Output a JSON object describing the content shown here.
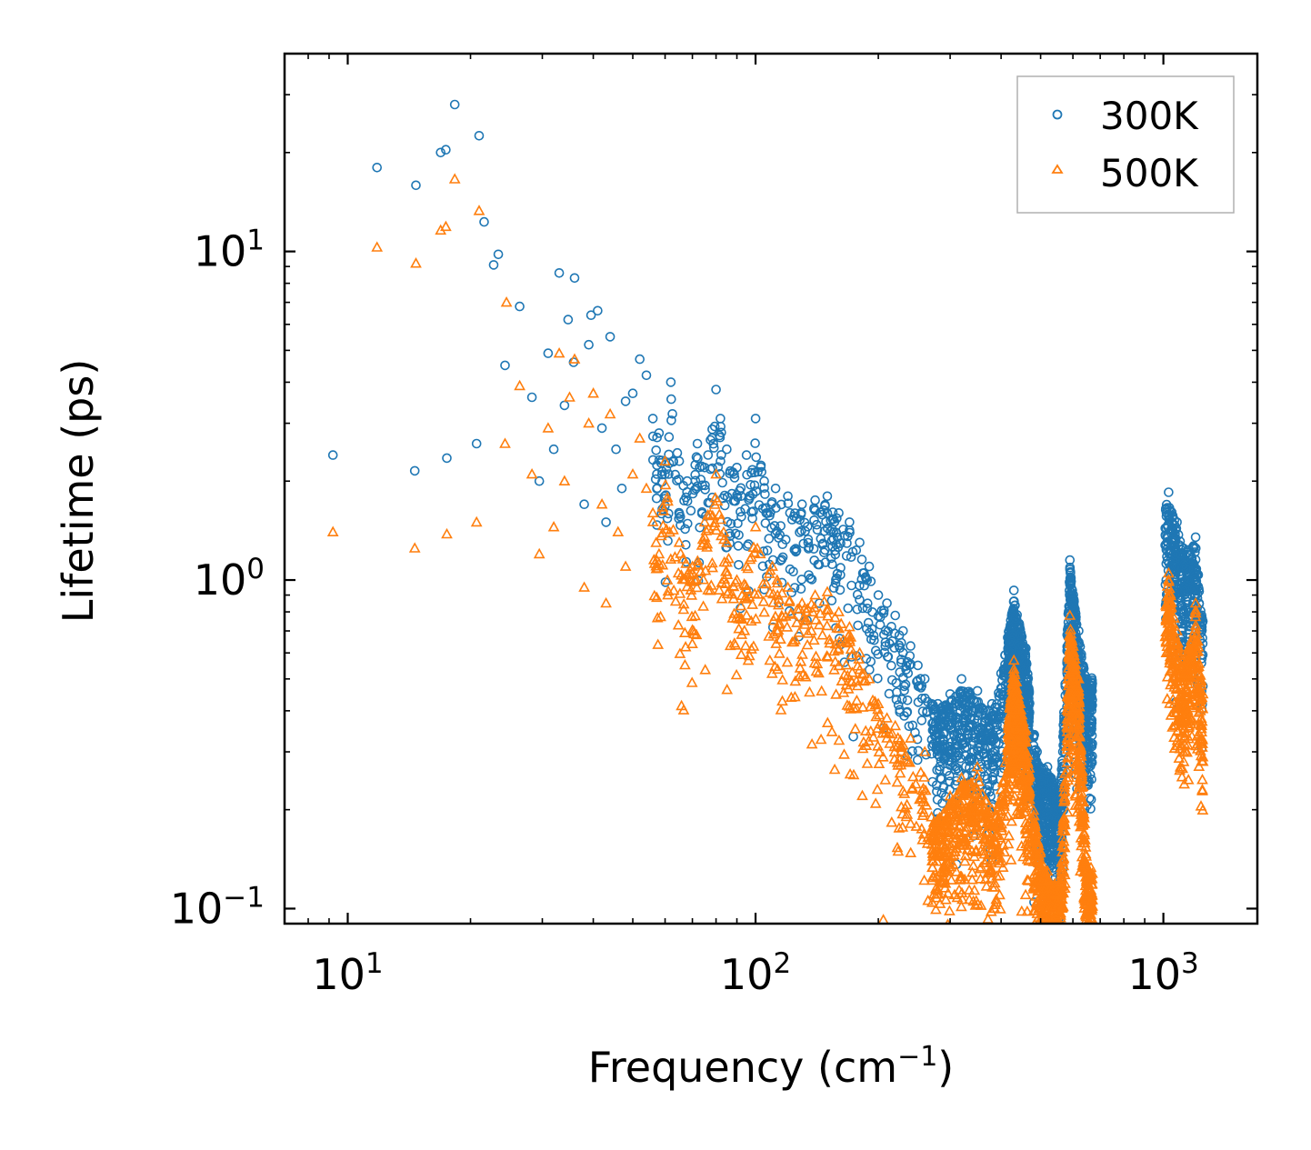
{
  "chart_data": {
    "type": "scatter",
    "xscale": "log",
    "yscale": "log",
    "title": "",
    "xlabel": "Frequency (cm",
    "xlabel_sup": "−1",
    "xlabel_end": ")",
    "ylabel": "Lifetime (ps)",
    "xlim": [
      7,
      1700
    ],
    "ylim": [
      0.09,
      40
    ],
    "grid": false,
    "legend_position": "top-right",
    "x_ticks": [
      {
        "value": 10,
        "base": "10",
        "exp": "1"
      },
      {
        "value": 100,
        "base": "10",
        "exp": "2"
      },
      {
        "value": 1000,
        "base": "10",
        "exp": "3"
      }
    ],
    "y_ticks": [
      {
        "value": 0.1,
        "base": "10",
        "exp": "−1"
      },
      {
        "value": 1,
        "base": "10",
        "exp": "0"
      },
      {
        "value": 10,
        "base": "10",
        "exp": "1"
      }
    ],
    "series": [
      {
        "name": "300K",
        "color": "#1f77b4",
        "marker": "circle",
        "points": [
          [
            9.2,
            2.4
          ],
          [
            11.8,
            18.0
          ],
          [
            14.6,
            2.15
          ],
          [
            14.7,
            15.9
          ],
          [
            16.9,
            20.0
          ],
          [
            17.4,
            20.4
          ],
          [
            17.5,
            2.35
          ],
          [
            18.3,
            28.0
          ],
          [
            20.7,
            2.6
          ],
          [
            21.0,
            22.5
          ],
          [
            21.6,
            12.3
          ],
          [
            22.8,
            9.1
          ],
          [
            23.4,
            9.8
          ],
          [
            24.3,
            4.5
          ],
          [
            26.4,
            6.8
          ],
          [
            28.3,
            3.6
          ],
          [
            29.5,
            2.0
          ],
          [
            31.0,
            4.9
          ],
          [
            32.0,
            2.5
          ],
          [
            33.0,
            8.6
          ],
          [
            34.0,
            3.4
          ],
          [
            34.7,
            6.2
          ],
          [
            35.8,
            4.6
          ],
          [
            36.0,
            8.3
          ],
          [
            38.0,
            1.7
          ],
          [
            39.0,
            5.2
          ],
          [
            39.5,
            6.4
          ],
          [
            41.0,
            6.6
          ],
          [
            42.0,
            2.9
          ],
          [
            43.0,
            1.5
          ],
          [
            44.0,
            5.5
          ],
          [
            45.5,
            2.5
          ],
          [
            47.0,
            1.9
          ],
          [
            48.0,
            3.5
          ],
          [
            50.0,
            3.7
          ],
          [
            52.0,
            4.7
          ],
          [
            54.0,
            4.2
          ],
          [
            56.0,
            3.1
          ],
          [
            58.0,
            2.8
          ],
          [
            60.0,
            2.1
          ],
          [
            62.0,
            4.0
          ],
          [
            65.0,
            2.3
          ],
          [
            68.0,
            2.0
          ],
          [
            72.0,
            2.6
          ],
          [
            75.0,
            2.2
          ],
          [
            80.0,
            3.8
          ],
          [
            82.0,
            3.1
          ],
          [
            85.0,
            2.5
          ],
          [
            90.0,
            2.2
          ],
          [
            95.0,
            2.4
          ],
          [
            100.0,
            3.1
          ],
          [
            105.0,
            2.0
          ],
          [
            112.0,
            1.9
          ],
          [
            120.0,
            1.8
          ],
          [
            130.0,
            1.7
          ],
          [
            140.0,
            1.75
          ],
          [
            150.0,
            1.8
          ],
          [
            160.0,
            1.6
          ],
          [
            170.0,
            1.5
          ],
          [
            180.0,
            1.3
          ],
          [
            190.0,
            1.1
          ],
          [
            200.0,
            0.9
          ],
          [
            210.0,
            0.85
          ],
          [
            220.0,
            0.78
          ],
          [
            230.0,
            0.7
          ],
          [
            240.0,
            0.63
          ],
          [
            250.0,
            0.55
          ],
          [
            260.0,
            0.5
          ],
          [
            280.0,
            0.42
          ],
          [
            300.0,
            0.45
          ],
          [
            320.0,
            0.5
          ],
          [
            350.0,
            0.46
          ],
          [
            380.0,
            0.42
          ],
          [
            400.0,
            0.52
          ],
          [
            430.0,
            0.93
          ],
          [
            460.0,
            0.62
          ],
          [
            490.0,
            0.3
          ],
          [
            520.0,
            0.27
          ],
          [
            560.0,
            0.24
          ],
          [
            590.0,
            1.15
          ],
          [
            620.0,
            0.7
          ],
          [
            650.0,
            0.5
          ],
          [
            1030.0,
            1.85
          ],
          [
            1080.0,
            1.5
          ],
          [
            1120.0,
            1.25
          ],
          [
            1200.0,
            1.35
          ],
          [
            1250.0,
            0.75
          ]
        ]
      },
      {
        "name": "500K",
        "color": "#ff7f0e",
        "marker": "triangle",
        "points": [
          [
            9.2,
            1.4
          ],
          [
            11.8,
            10.3
          ],
          [
            14.6,
            1.25
          ],
          [
            14.7,
            9.2
          ],
          [
            16.9,
            11.6
          ],
          [
            17.4,
            11.9
          ],
          [
            17.5,
            1.38
          ],
          [
            18.3,
            16.6
          ],
          [
            20.7,
            1.5
          ],
          [
            21.0,
            13.3
          ],
          [
            24.3,
            2.6
          ],
          [
            24.5,
            7.0
          ],
          [
            26.4,
            3.9
          ],
          [
            28.3,
            2.1
          ],
          [
            29.5,
            1.2
          ],
          [
            31.0,
            2.9
          ],
          [
            32.0,
            1.45
          ],
          [
            33.0,
            4.9
          ],
          [
            34.0,
            2.0
          ],
          [
            35.0,
            3.6
          ],
          [
            36.0,
            4.7
          ],
          [
            38.0,
            0.95
          ],
          [
            39.0,
            3.0
          ],
          [
            40.0,
            3.7
          ],
          [
            42.0,
            1.7
          ],
          [
            43.0,
            0.85
          ],
          [
            44.0,
            3.2
          ],
          [
            46.0,
            1.4
          ],
          [
            48.0,
            1.1
          ],
          [
            50.0,
            2.1
          ],
          [
            52.0,
            2.7
          ],
          [
            54.0,
            1.9
          ],
          [
            56.0,
            1.6
          ],
          [
            58.0,
            1.2
          ],
          [
            60.0,
            2.3
          ],
          [
            65.0,
            1.3
          ],
          [
            70.0,
            1.1
          ],
          [
            75.0,
            1.5
          ],
          [
            80.0,
            2.1
          ],
          [
            85.0,
            1.3
          ],
          [
            90.0,
            1.0
          ],
          [
            95.0,
            1.1
          ],
          [
            100.0,
            1.45
          ],
          [
            110.0,
            1.1
          ],
          [
            120.0,
            0.95
          ],
          [
            130.0,
            0.85
          ],
          [
            140.0,
            0.9
          ],
          [
            150.0,
            0.92
          ],
          [
            160.0,
            0.8
          ],
          [
            170.0,
            0.72
          ],
          [
            180.0,
            0.6
          ],
          [
            190.0,
            0.5
          ],
          [
            200.0,
            0.42
          ],
          [
            210.0,
            0.38
          ],
          [
            220.0,
            0.36
          ],
          [
            240.0,
            0.33
          ],
          [
            260.0,
            0.3
          ],
          [
            270.0,
            0.19
          ],
          [
            300.0,
            0.22
          ],
          [
            320.0,
            0.25
          ],
          [
            350.0,
            0.27
          ],
          [
            380.0,
            0.2
          ],
          [
            400.0,
            0.23
          ],
          [
            430.0,
            0.57
          ],
          [
            460.0,
            0.35
          ],
          [
            490.0,
            0.17
          ],
          [
            520.0,
            0.13
          ],
          [
            560.0,
            0.12
          ],
          [
            590.0,
            0.78
          ],
          [
            620.0,
            0.5
          ],
          [
            650.0,
            0.13
          ],
          [
            1030.0,
            1.05
          ],
          [
            1080.0,
            0.7
          ],
          [
            1120.0,
            0.55
          ],
          [
            1200.0,
            0.85
          ],
          [
            1250.0,
            0.45
          ]
        ]
      }
    ]
  }
}
